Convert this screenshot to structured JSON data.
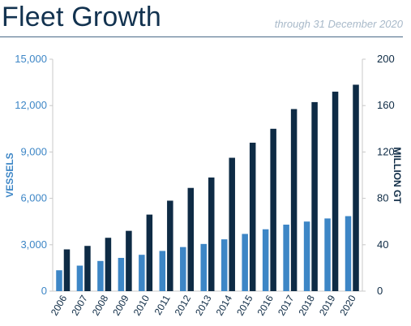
{
  "header": {
    "title": "Fleet Growth",
    "subtitle": "through 31 December 2020"
  },
  "colors": {
    "vessels": "#3d86c6",
    "gt": "#0e2b45",
    "left_axis_text": "#3d86c6",
    "right_axis_text": "#0e2b45",
    "axis_line": "#c8c8c8"
  },
  "chart_data": {
    "type": "bar",
    "categories": [
      "2006",
      "2007",
      "2008",
      "2009",
      "2010",
      "2011",
      "2012",
      "2013",
      "2014",
      "2015",
      "2016",
      "2017",
      "2018",
      "2019",
      "2020"
    ],
    "series": [
      {
        "name": "VESSELS",
        "axis": "left",
        "values": [
          1350,
          1650,
          1950,
          2150,
          2350,
          2600,
          2850,
          3050,
          3350,
          3700,
          4000,
          4300,
          4500,
          4700,
          4850
        ]
      },
      {
        "name": "MILLION GT",
        "axis": "right",
        "values": [
          36,
          39,
          46,
          52,
          66,
          78,
          89,
          98,
          115,
          128,
          140,
          157,
          163,
          172,
          178
        ]
      }
    ],
    "ylabel": "VESSELS",
    "ylim": [
      0,
      15000
    ],
    "yticks": [
      "0",
      "3,000",
      "6,000",
      "9,000",
      "12,000",
      "15,000"
    ],
    "y2label": "MILLION GT",
    "y2lim": [
      0,
      200
    ],
    "y2ticks": [
      "0",
      "40",
      "80",
      "120",
      "160",
      "200"
    ],
    "grid": false
  }
}
